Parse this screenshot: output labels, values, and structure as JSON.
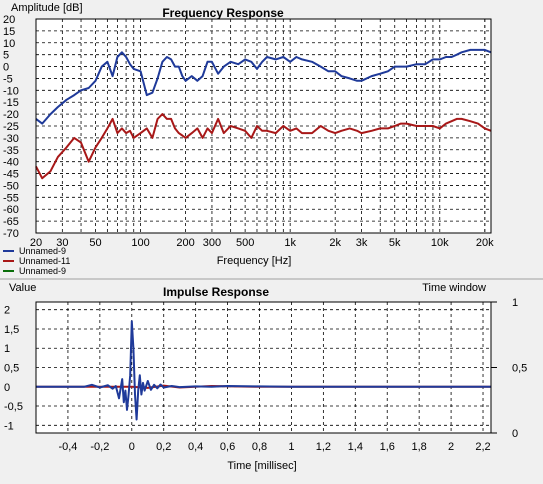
{
  "chart_data": [
    {
      "type": "line",
      "title": "Frequency Response",
      "ylabel": "Amplitude [dB]",
      "xlabel": "Frequency [Hz]",
      "x_scale": "log",
      "xlim": [
        20,
        22000
      ],
      "ylim": [
        -70,
        20
      ],
      "grid": true,
      "legend_position": "bottom-left",
      "x_ticks": [
        {
          "v": 20,
          "label": "20",
          "major": true
        },
        {
          "v": 30,
          "label": "30",
          "major": false
        },
        {
          "v": 50,
          "label": "50",
          "major": true
        },
        {
          "v": 100,
          "label": "100",
          "major": true
        },
        {
          "v": 200,
          "label": "200",
          "major": true
        },
        {
          "v": 300,
          "label": "300",
          "major": false
        },
        {
          "v": 500,
          "label": "500",
          "major": true
        },
        {
          "v": 1000,
          "label": "1k",
          "major": true
        },
        {
          "v": 2000,
          "label": "2k",
          "major": true
        },
        {
          "v": 3000,
          "label": "3k",
          "major": false
        },
        {
          "v": 5000,
          "label": "5k",
          "major": true
        },
        {
          "v": 10000,
          "label": "10k",
          "major": true
        },
        {
          "v": 20000,
          "label": "20k",
          "major": true
        }
      ],
      "y_ticks": [
        "20",
        "15",
        "10",
        "5",
        "0",
        "-5",
        "-10",
        "-15",
        "-20",
        "-25",
        "-30",
        "-35",
        "-40",
        "-45",
        "-50",
        "-55",
        "-60",
        "-65",
        "-70"
      ],
      "series": [
        {
          "name": "Unnamed-9",
          "color": "#1f3a9a",
          "x": [
            20,
            22,
            25,
            28,
            32,
            36,
            40,
            45,
            50,
            55,
            60,
            65,
            70,
            75,
            80,
            85,
            90,
            100,
            110,
            120,
            130,
            140,
            150,
            160,
            170,
            180,
            190,
            200,
            220,
            240,
            260,
            280,
            300,
            330,
            360,
            400,
            450,
            500,
            550,
            600,
            650,
            700,
            800,
            900,
            1000,
            1100,
            1200,
            1400,
            1600,
            1800,
            2000,
            2200,
            2500,
            2800,
            3000,
            3500,
            4000,
            4500,
            5000,
            5500,
            6000,
            7000,
            8000,
            9000,
            10000,
            11000,
            12000,
            13000,
            14000,
            16000,
            18000,
            20000,
            22000
          ],
          "y": [
            -22,
            -24,
            -20,
            -17,
            -14,
            -12,
            -10,
            -9,
            -6,
            0,
            2,
            -4,
            4,
            6,
            4,
            1,
            -1,
            -2,
            -12,
            -11,
            -5,
            2,
            4,
            3,
            0,
            0,
            -4,
            -6,
            -4,
            -6,
            -4,
            2,
            2,
            -3,
            0,
            2,
            1,
            3,
            2,
            -1,
            2,
            4,
            3,
            4,
            2,
            4,
            3,
            2,
            0,
            -2,
            -2,
            -4,
            -5,
            -6,
            -6,
            -4,
            -3,
            -2,
            0,
            0,
            0,
            1,
            1,
            3,
            3,
            4,
            4,
            5,
            6,
            7,
            7,
            7,
            6
          ]
        },
        {
          "name": "Unnamed-11",
          "color": "#a81818",
          "x": [
            20,
            22,
            25,
            28,
            32,
            36,
            40,
            45,
            50,
            55,
            60,
            65,
            70,
            75,
            80,
            85,
            90,
            100,
            110,
            120,
            130,
            140,
            150,
            160,
            170,
            180,
            190,
            200,
            220,
            240,
            260,
            280,
            300,
            330,
            360,
            400,
            450,
            500,
            550,
            600,
            650,
            700,
            800,
            900,
            1000,
            1100,
            1200,
            1400,
            1600,
            1800,
            2000,
            2200,
            2500,
            2800,
            3000,
            3500,
            4000,
            4500,
            5000,
            5500,
            6000,
            7000,
            8000,
            9000,
            10000,
            11000,
            12000,
            13000,
            14000,
            16000,
            18000,
            20000,
            22000
          ],
          "y": [
            -42,
            -47,
            -44,
            -38,
            -34,
            -30,
            -32,
            -40,
            -34,
            -30,
            -26,
            -22,
            -28,
            -26,
            -28,
            -27,
            -30,
            -28,
            -26,
            -30,
            -22,
            -20,
            -22,
            -22,
            -26,
            -28,
            -29,
            -30,
            -28,
            -26,
            -30,
            -26,
            -28,
            -22,
            -28,
            -25,
            -26,
            -27,
            -30,
            -25,
            -27,
            -27,
            -28,
            -25,
            -27,
            -26,
            -28,
            -28,
            -25,
            -27,
            -28,
            -27,
            -26,
            -27,
            -28,
            -27,
            -26,
            -26,
            -25,
            -24,
            -24,
            -25,
            -25,
            -25,
            -26,
            -24,
            -23,
            -22,
            -22,
            -23,
            -24,
            -26,
            -27
          ]
        },
        {
          "name": "Unnamed-9",
          "color": "#0a6e0a",
          "x": [],
          "y": []
        }
      ]
    },
    {
      "type": "line",
      "title": "Impulse Response",
      "ylabel": "Value",
      "xlabel": "Time [millisec]",
      "y2label": "Time window",
      "xlim": [
        -0.6,
        2.25
      ],
      "ylim": [
        -1.2,
        2.2
      ],
      "y2lim": [
        0,
        1
      ],
      "grid": true,
      "x_ticks": [
        "-0,4",
        "-0,2",
        "0",
        "0,2",
        "0,4",
        "0,6",
        "0,8",
        "1",
        "1,2",
        "1,4",
        "1,6",
        "1,8",
        "2",
        "2,2"
      ],
      "y_ticks": [
        "2",
        "1,5",
        "1",
        "0,5",
        "0",
        "-0,5",
        "-1"
      ],
      "y2_ticks": [
        "1",
        "0,5",
        "0"
      ],
      "series": [
        {
          "name": "Unnamed-9",
          "color": "#1f3a9a",
          "x": [
            -0.6,
            -0.3,
            -0.25,
            -0.2,
            -0.15,
            -0.12,
            -0.1,
            -0.08,
            -0.06,
            -0.05,
            -0.04,
            -0.03,
            -0.02,
            -0.01,
            0.0,
            0.01,
            0.02,
            0.03,
            0.04,
            0.05,
            0.06,
            0.07,
            0.08,
            0.1,
            0.12,
            0.14,
            0.16,
            0.18,
            0.2,
            0.25,
            0.3,
            0.4,
            0.5,
            0.6,
            0.8,
            1.0,
            1.2,
            1.5,
            2.25
          ],
          "y": [
            0,
            0,
            0.05,
            -0.02,
            0.04,
            -0.05,
            0.02,
            -0.3,
            0.2,
            -0.4,
            -0.1,
            -0.6,
            -0.2,
            0.3,
            1.7,
            1.0,
            -0.2,
            -0.85,
            -0.1,
            0.3,
            -0.2,
            0.1,
            -0.1,
            0.15,
            -0.08,
            0.05,
            -0.04,
            0.06,
            -0.02,
            0.02,
            -0.01,
            0.01,
            0.0,
            0.02,
            0.01,
            0.0,
            0.0,
            0.0,
            0.0
          ]
        },
        {
          "name": "Unnamed-11",
          "color": "#a81818",
          "x": [
            -0.6,
            0.0,
            0.1,
            0.2,
            0.3,
            0.5,
            0.8,
            1.2,
            2.25
          ],
          "y": [
            0,
            0,
            -0.03,
            0.03,
            -0.02,
            0.02,
            0.0,
            0.0,
            0.0
          ]
        }
      ]
    }
  ]
}
